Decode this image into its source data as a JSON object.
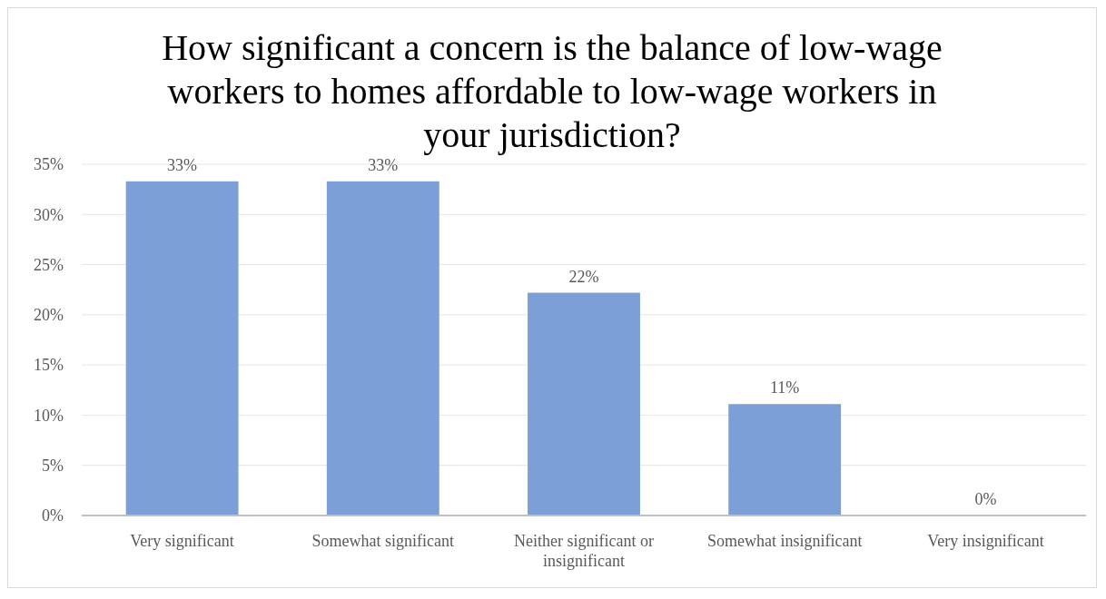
{
  "chart_data": {
    "type": "bar",
    "title": "How significant a concern is the balance of low-wage workers to homes affordable to low-wage workers in your jurisdiction?",
    "categories": [
      "Very significant",
      "Somewhat significant",
      "Neither significant or insignificant",
      "Somewhat insignificant",
      "Very insignificant"
    ],
    "values": [
      33.3,
      33.3,
      22.2,
      11.1,
      0
    ],
    "value_labels": [
      "33%",
      "33%",
      "22%",
      "11%",
      "0%"
    ],
    "color": "#7b9fd6",
    "ylim": [
      0,
      35
    ],
    "yticks": [
      {
        "value": 0,
        "label": "0%"
      },
      {
        "value": 5,
        "label": "5%"
      },
      {
        "value": 10,
        "label": "10%"
      },
      {
        "value": 15,
        "label": "15%"
      },
      {
        "value": 20,
        "label": "20%"
      },
      {
        "value": 25,
        "label": "25%"
      },
      {
        "value": 30,
        "label": "30%"
      },
      {
        "value": 35,
        "label": "35%"
      }
    ],
    "grid": "y"
  }
}
